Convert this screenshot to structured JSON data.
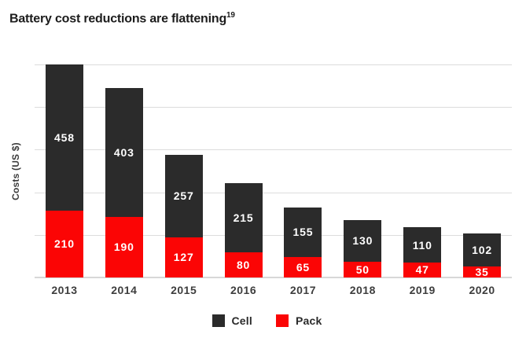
{
  "title": "Battery cost reductions are flattening",
  "title_sup": "19",
  "chart_data": {
    "type": "bar",
    "stacked": true,
    "title": "Battery cost reductions are flattening",
    "footnote_marker": "19",
    "categories": [
      "2013",
      "2014",
      "2015",
      "2016",
      "2017",
      "2018",
      "2019",
      "2020"
    ],
    "series": [
      {
        "name": "Cell",
        "color": "#2b2b2b",
        "position": "top",
        "values": [
          458,
          403,
          257,
          215,
          155,
          130,
          110,
          102
        ]
      },
      {
        "name": "Pack",
        "color": "#fb0505",
        "position": "bottom",
        "values": [
          210,
          190,
          127,
          80,
          65,
          50,
          47,
          35
        ]
      }
    ],
    "totals": [
      668,
      593,
      384,
      295,
      220,
      180,
      157,
      137
    ],
    "xlabel": "",
    "ylabel": "Costs (US $)",
    "ylim": [
      0,
      668
    ],
    "y_ticks_labeled": false,
    "gridline_count": 6,
    "grid": true,
    "value_labels": "inside-segments",
    "value_label_color": "#ffffff",
    "legend_position": "bottom",
    "gridline_color": "#dcdcdc",
    "axis_text_color": "#3d3d3d",
    "title_color": "#1c1c1c",
    "background_color": "#ffffff"
  }
}
